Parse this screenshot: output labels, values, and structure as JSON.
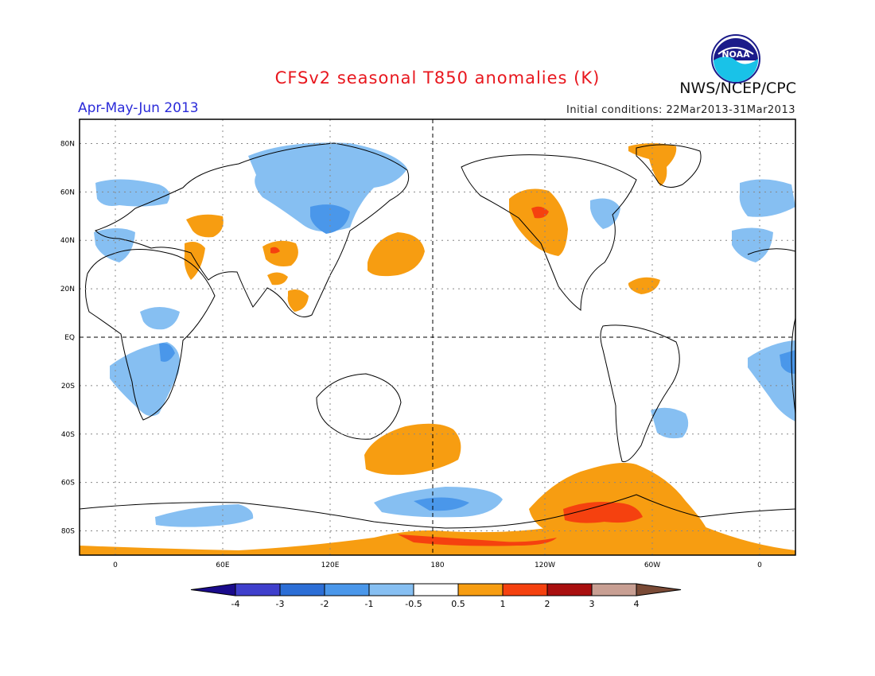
{
  "header": {
    "title": "CFSv2 seasonal T850 anomalies (K)",
    "agency": "NWS/NCEP/CPC",
    "season": "Apr-May-Jun 2013",
    "initial_conditions": "Initial conditions: 22Mar2013-31Mar2013",
    "logo_text": "NOAA"
  },
  "map": {
    "projection": "cylindrical equidistant",
    "lon_range": [
      -20,
      380
    ],
    "lat_range": [
      -90,
      90
    ],
    "dashed_reference_lines": [
      "EQ",
      "180"
    ],
    "lat_labels": [
      "80N",
      "60N",
      "40N",
      "20N",
      "EQ",
      "20S",
      "40S",
      "60S",
      "80S"
    ],
    "lon_labels": [
      "0",
      "60E",
      "120E",
      "180",
      "120W",
      "60W",
      "0"
    ]
  },
  "colorbar": {
    "labels": [
      "-4",
      "-3",
      "-2",
      "-1",
      "-0.5",
      "0.5",
      "1",
      "2",
      "3",
      "4"
    ],
    "colors": [
      "#1a0b8c",
      "#3f3fcc",
      "#2c6ed6",
      "#4a97ea",
      "#86bff2",
      "#ffffff",
      "#f79d11",
      "#f5410f",
      "#a90f0f",
      "#c89f93",
      "#7a4a36"
    ]
  },
  "colors": {
    "cool_weak": "#86bff2",
    "cool_mid": "#4a97ea",
    "warm_weak": "#f79d11",
    "warm_mid": "#f5410f",
    "title": "#e8171e",
    "season_text": "#2b2bd9"
  }
}
